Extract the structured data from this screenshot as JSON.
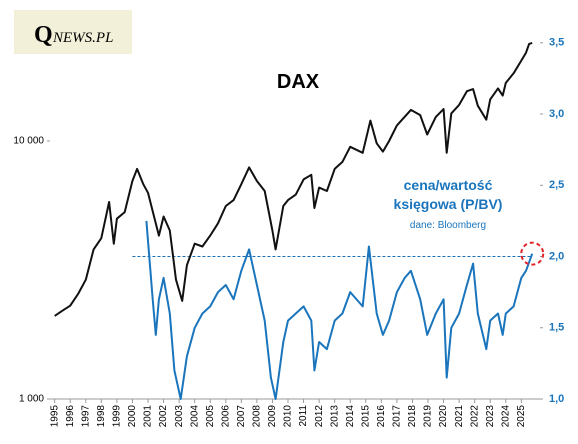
{
  "chart_data": {
    "type": "line",
    "title": "DAX",
    "logo": [
      "Q",
      "NEWS.PL"
    ],
    "source": "dane: Bloomberg",
    "xlim": [
      1994.7,
      2026.2
    ],
    "xticks": [
      1995,
      1996,
      1997,
      1998,
      1999,
      2000,
      2001,
      2002,
      2003,
      2004,
      2005,
      2006,
      2007,
      2008,
      2009,
      2010,
      2011,
      2012,
      2013,
      2014,
      2015,
      2016,
      2017,
      2018,
      2019,
      2020,
      2021,
      2022,
      2023,
      2024,
      2025
    ],
    "ylim": [
      1000,
      32200
    ],
    "y_log": true,
    "yticks": [
      {
        "value": 1000,
        "label": "1 000"
      },
      {
        "value": 10000,
        "label": "10 000"
      }
    ],
    "y2lim": [
      1.0,
      3.73
    ],
    "y2ticks": [
      {
        "value": 1.0,
        "label": "1,0"
      },
      {
        "value": 1.5,
        "label": "1,5"
      },
      {
        "value": 2.0,
        "label": "2,0"
      },
      {
        "value": 2.5,
        "label": "2,5"
      },
      {
        "value": 3.0,
        "label": "3,0"
      },
      {
        "value": 3.5,
        "label": "3,5"
      }
    ],
    "hline": {
      "value": 2.0,
      "axis": "y2",
      "color": "#1a6fb5"
    },
    "series": [
      {
        "name": "DAX",
        "color": "#111111",
        "axis": "y",
        "x": [
          1995.0,
          1995.5,
          1996.0,
          1996.5,
          1997.0,
          1997.5,
          1998.0,
          1998.5,
          1998.8,
          1999.0,
          1999.5,
          2000.0,
          2000.3,
          2000.7,
          2001.0,
          2001.7,
          2002.0,
          2002.4,
          2002.8,
          2003.2,
          2003.5,
          2004.0,
          2004.5,
          2005.0,
          2005.5,
          2006.0,
          2006.5,
          2007.0,
          2007.5,
          2008.0,
          2008.5,
          2009.0,
          2009.2,
          2009.7,
          2010.0,
          2010.5,
          2011.0,
          2011.5,
          2011.7,
          2012.0,
          2012.5,
          2013.0,
          2013.5,
          2014.0,
          2014.8,
          2015.3,
          2015.7,
          2016.1,
          2016.5,
          2017.0,
          2017.9,
          2018.5,
          2018.95,
          2019.5,
          2020.0,
          2020.2,
          2020.5,
          2021.0,
          2021.5,
          2021.9,
          2022.2,
          2022.75,
          2023.0,
          2023.5,
          2023.8,
          2024.0,
          2024.5,
          2025.0,
          2025.3,
          2025.5,
          2025.7
        ],
        "values": [
          2100,
          2200,
          2300,
          2550,
          2900,
          3800,
          4200,
          5800,
          4000,
          5000,
          5300,
          7000,
          7800,
          6800,
          6300,
          4300,
          5100,
          4500,
          2900,
          2400,
          3300,
          4000,
          3900,
          4300,
          4800,
          5600,
          5900,
          6800,
          7900,
          7000,
          6400,
          4500,
          3800,
          5600,
          5900,
          6200,
          7100,
          7400,
          5500,
          6600,
          6400,
          7800,
          8300,
          9500,
          9000,
          12000,
          9800,
          9100,
          10000,
          11500,
          13200,
          12600,
          10600,
          12400,
          13300,
          9000,
          12800,
          13800,
          15600,
          15900,
          13700,
          12100,
          14500,
          16000,
          15000,
          16800,
          18300,
          20500,
          22000,
          23800,
          24000
        ]
      },
      {
        "name": "cena/wartość księgowa (P/BV)",
        "color": "#1a75bc",
        "axis": "y2",
        "x": [
          2000.9,
          2001.3,
          2001.5,
          2001.7,
          2002.0,
          2002.4,
          2002.7,
          2003.1,
          2003.5,
          2004.0,
          2004.5,
          2005.0,
          2005.5,
          2006.0,
          2006.5,
          2007.0,
          2007.5,
          2008.0,
          2008.5,
          2008.9,
          2009.2,
          2009.7,
          2010.0,
          2010.5,
          2011.0,
          2011.5,
          2011.7,
          2012.0,
          2012.5,
          2013.0,
          2013.5,
          2014.0,
          2014.8,
          2015.2,
          2015.7,
          2016.1,
          2016.5,
          2017.0,
          2017.5,
          2017.9,
          2018.5,
          2018.95,
          2019.5,
          2020.0,
          2020.2,
          2020.5,
          2021.0,
          2021.5,
          2021.9,
          2022.2,
          2022.75,
          2023.0,
          2023.5,
          2023.8,
          2024.0,
          2024.5,
          2025.0,
          2025.3,
          2025.7
        ],
        "values": [
          2.25,
          1.7,
          1.45,
          1.7,
          1.85,
          1.6,
          1.2,
          1.0,
          1.3,
          1.5,
          1.6,
          1.65,
          1.75,
          1.8,
          1.7,
          1.9,
          2.05,
          1.8,
          1.55,
          1.15,
          1.0,
          1.4,
          1.55,
          1.6,
          1.65,
          1.55,
          1.2,
          1.4,
          1.35,
          1.55,
          1.6,
          1.75,
          1.65,
          2.07,
          1.6,
          1.45,
          1.55,
          1.75,
          1.85,
          1.9,
          1.7,
          1.45,
          1.6,
          1.7,
          1.15,
          1.5,
          1.6,
          1.8,
          1.95,
          1.6,
          1.35,
          1.55,
          1.6,
          1.45,
          1.6,
          1.65,
          1.85,
          1.9,
          2.02
        ]
      }
    ]
  }
}
